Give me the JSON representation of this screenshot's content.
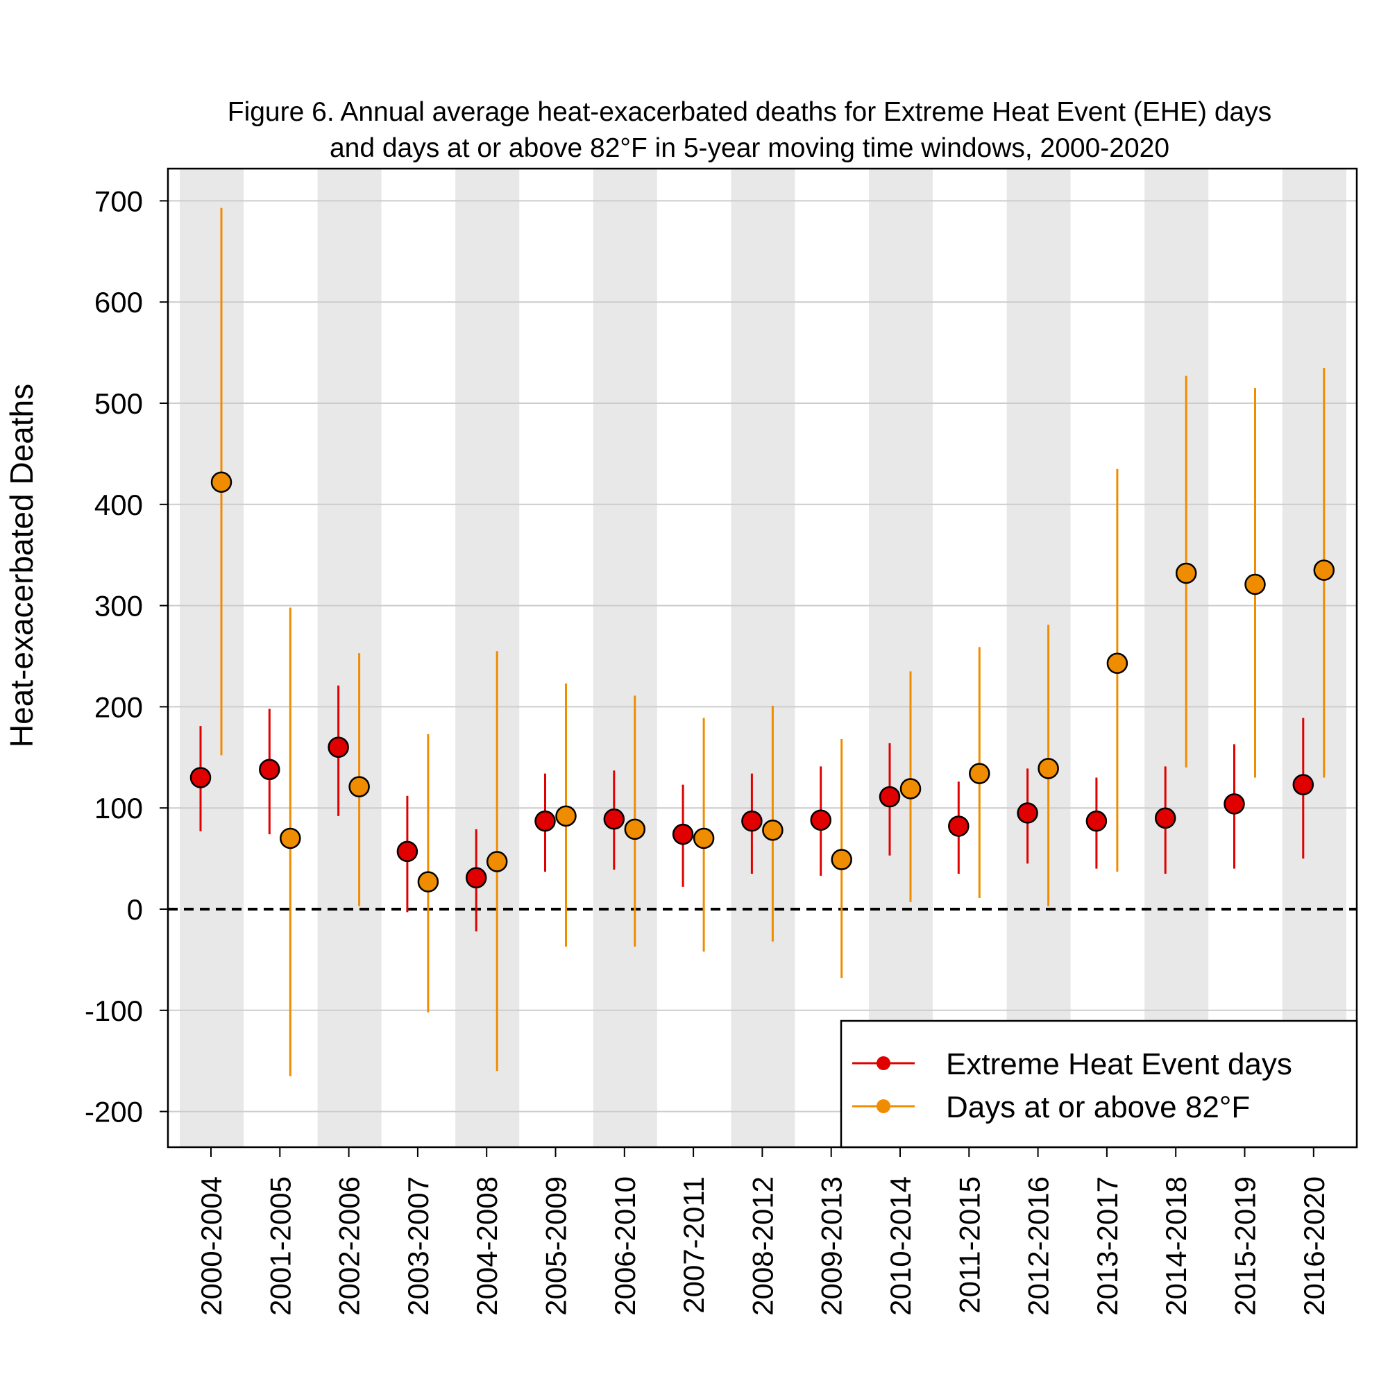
{
  "chart_data": {
    "type": "scatter",
    "title": [
      "Figure 6. Annual average heat-exacerbated deaths for Extreme Heat Event (EHE) days",
      "and days at or above 82°F in 5-year moving time windows, 2000-2020"
    ],
    "ylabel": "Heat-exacerbated Deaths",
    "xlabel": "",
    "ylim": [
      -235,
      735
    ],
    "yticks": [
      -200,
      -100,
      0,
      100,
      200,
      300,
      400,
      500,
      600,
      700
    ],
    "ytick_labels": [
      "-200",
      "-100",
      "0",
      "100",
      "200",
      "300",
      "400",
      "500",
      "600",
      "700"
    ],
    "grid": true,
    "reference_line": 0,
    "alternating_band_shading": true,
    "legend_position": "bottom-right",
    "categories": [
      "2000-2004",
      "2001-2005",
      "2002-2006",
      "2003-2007",
      "2004-2008",
      "2005-2009",
      "2006-2010",
      "2007-2011",
      "2008-2012",
      "2009-2013",
      "2010-2014",
      "2011-2015",
      "2012-2016",
      "2013-2017",
      "2014-2018",
      "2015-2019",
      "2016-2020"
    ],
    "series": [
      {
        "name": "Extreme Heat Event days",
        "color": "#e00000",
        "values": [
          130,
          138,
          160,
          57,
          31,
          87,
          89,
          74,
          87,
          88,
          111,
          82,
          95,
          87,
          90,
          104,
          123
        ],
        "lower": [
          77,
          74,
          92,
          -3,
          -22,
          37,
          39,
          22,
          35,
          33,
          53,
          35,
          45,
          40,
          35,
          40,
          50
        ],
        "upper": [
          181,
          198,
          221,
          112,
          79,
          134,
          137,
          123,
          134,
          141,
          164,
          126,
          139,
          130,
          141,
          163,
          189
        ]
      },
      {
        "name": "Days at or above 82°F",
        "color": "#f08c00",
        "values": [
          422,
          70,
          121,
          27,
          47,
          92,
          79,
          70,
          78,
          49,
          119,
          134,
          139,
          243,
          332,
          321,
          335
        ],
        "lower": [
          152,
          -165,
          3,
          -102,
          -160,
          -37,
          -37,
          -42,
          -32,
          -68,
          7,
          11,
          3,
          37,
          140,
          130,
          130
        ],
        "upper": [
          693,
          298,
          253,
          173,
          255,
          223,
          211,
          189,
          201,
          168,
          235,
          259,
          281,
          435,
          527,
          515,
          535
        ]
      }
    ]
  }
}
